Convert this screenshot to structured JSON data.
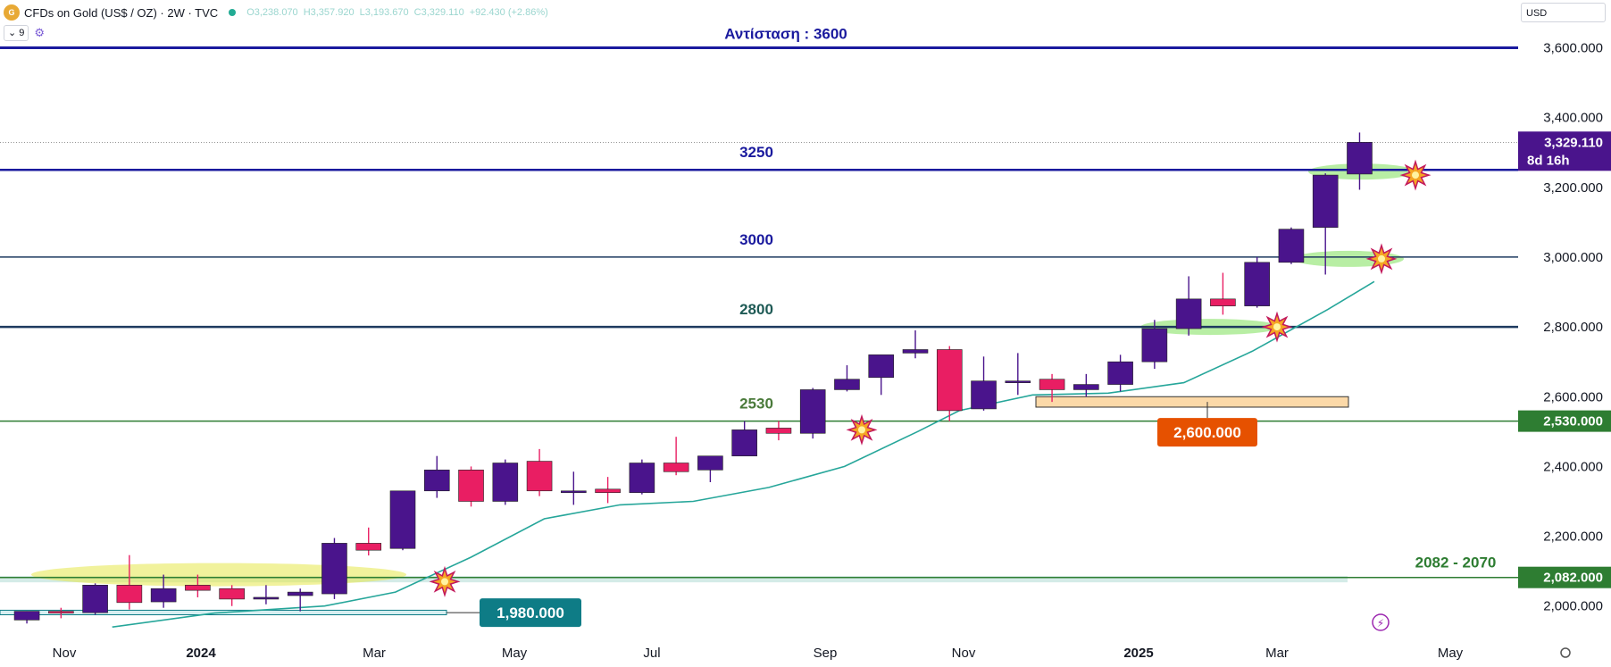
{
  "header": {
    "logo_text": "G",
    "title": "CFDs on Gold (US$ / OZ) · 2W · TVC",
    "open": "O3,238.070",
    "high": "H3,357.920",
    "low": "L3,193.670",
    "close": "C3,329.110",
    "change": "+92.430 (+2.86%)",
    "indicator_count": "9",
    "currency": "USD"
  },
  "chart_data": {
    "type": "candlestick",
    "ylim": [
      1920,
      3660
    ],
    "y_ticks": [
      "2,000.000",
      "2,200.000",
      "2,400.000",
      "2,600.000",
      "2,800.000",
      "3,000.000",
      "3,200.000",
      "3,400.000",
      "3,600.000"
    ],
    "x_ticks": [
      "Nov",
      "2024",
      "Mar",
      "May",
      "Jul",
      "Sep",
      "Nov",
      "2025",
      "Mar",
      "May"
    ],
    "colors": {
      "up": "#4a148c",
      "down": "#e91e63",
      "ema": "#26a69a",
      "resistance": "#1a1a9e",
      "level": "#1e3a5f",
      "support_green": "#2e7d32"
    },
    "candles": [
      {
        "date": "2023-10-16",
        "o": 1960,
        "h": 1985,
        "l": 1950,
        "c": 1985
      },
      {
        "date": "2023-10-30",
        "o": 1985,
        "h": 1995,
        "l": 1965,
        "c": 1980
      },
      {
        "date": "2023-11-13",
        "o": 1981,
        "h": 2065,
        "l": 1975,
        "c": 2060
      },
      {
        "date": "2023-11-27",
        "o": 2060,
        "h": 2146,
        "l": 1990,
        "c": 2010
      },
      {
        "date": "2023-12-11",
        "o": 2012,
        "h": 2090,
        "l": 1995,
        "c": 2050
      },
      {
        "date": "2023-12-25",
        "o": 2060,
        "h": 2090,
        "l": 2025,
        "c": 2045
      },
      {
        "date": "2024-01-08",
        "o": 2050,
        "h": 2060,
        "l": 2000,
        "c": 2020
      },
      {
        "date": "2024-01-22",
        "o": 2022,
        "h": 2060,
        "l": 2005,
        "c": 2025
      },
      {
        "date": "2024-02-05",
        "o": 2030,
        "h": 2050,
        "l": 1985,
        "c": 2040
      },
      {
        "date": "2024-02-19",
        "o": 2035,
        "h": 2195,
        "l": 2020,
        "c": 2180
      },
      {
        "date": "2024-03-04",
        "o": 2180,
        "h": 2225,
        "l": 2145,
        "c": 2160
      },
      {
        "date": "2024-03-18",
        "o": 2165,
        "h": 2330,
        "l": 2160,
        "c": 2330
      },
      {
        "date": "2024-04-01",
        "o": 2330,
        "h": 2430,
        "l": 2310,
        "c": 2390
      },
      {
        "date": "2024-04-15",
        "o": 2390,
        "h": 2400,
        "l": 2285,
        "c": 2300
      },
      {
        "date": "2024-04-29",
        "o": 2300,
        "h": 2420,
        "l": 2290,
        "c": 2410
      },
      {
        "date": "2024-05-13",
        "o": 2415,
        "h": 2450,
        "l": 2315,
        "c": 2330
      },
      {
        "date": "2024-05-27",
        "o": 2330,
        "h": 2385,
        "l": 2290,
        "c": 2330
      },
      {
        "date": "2024-06-10",
        "o": 2335,
        "h": 2370,
        "l": 2295,
        "c": 2325
      },
      {
        "date": "2024-06-24",
        "o": 2325,
        "h": 2420,
        "l": 2320,
        "c": 2410
      },
      {
        "date": "2024-07-08",
        "o": 2410,
        "h": 2485,
        "l": 2375,
        "c": 2385
      },
      {
        "date": "2024-07-22",
        "o": 2390,
        "h": 2430,
        "l": 2355,
        "c": 2430
      },
      {
        "date": "2024-08-05",
        "o": 2430,
        "h": 2530,
        "l": 2430,
        "c": 2505
      },
      {
        "date": "2024-08-19",
        "o": 2510,
        "h": 2530,
        "l": 2475,
        "c": 2495
      },
      {
        "date": "2024-09-02",
        "o": 2495,
        "h": 2625,
        "l": 2480,
        "c": 2620
      },
      {
        "date": "2024-09-16",
        "o": 2620,
        "h": 2690,
        "l": 2615,
        "c": 2650
      },
      {
        "date": "2024-09-30",
        "o": 2655,
        "h": 2720,
        "l": 2605,
        "c": 2720
      },
      {
        "date": "2024-10-14",
        "o": 2725,
        "h": 2790,
        "l": 2710,
        "c": 2735
      },
      {
        "date": "2024-10-28",
        "o": 2735,
        "h": 2745,
        "l": 2530,
        "c": 2560
      },
      {
        "date": "2024-11-11",
        "o": 2565,
        "h": 2715,
        "l": 2560,
        "c": 2645
      },
      {
        "date": "2024-11-25",
        "o": 2645,
        "h": 2725,
        "l": 2605,
        "c": 2645
      },
      {
        "date": "2024-12-09",
        "o": 2650,
        "h": 2665,
        "l": 2585,
        "c": 2620
      },
      {
        "date": "2024-12-23",
        "o": 2620,
        "h": 2665,
        "l": 2600,
        "c": 2635
      },
      {
        "date": "2025-01-06",
        "o": 2635,
        "h": 2720,
        "l": 2615,
        "c": 2700
      },
      {
        "date": "2025-01-20",
        "o": 2700,
        "h": 2820,
        "l": 2680,
        "c": 2795
      },
      {
        "date": "2025-02-03",
        "o": 2795,
        "h": 2945,
        "l": 2775,
        "c": 2880
      },
      {
        "date": "2025-02-17",
        "o": 2880,
        "h": 2955,
        "l": 2835,
        "c": 2860
      },
      {
        "date": "2025-03-03",
        "o": 2860,
        "h": 3000,
        "l": 2855,
        "c": 2985
      },
      {
        "date": "2025-03-17",
        "o": 2985,
        "h": 3085,
        "l": 2980,
        "c": 3080
      },
      {
        "date": "2025-03-31",
        "o": 3085,
        "h": 3240,
        "l": 2950,
        "c": 3235
      },
      {
        "date": "2025-04-14",
        "o": 3238,
        "h": 3357,
        "l": 3193,
        "c": 3329
      }
    ],
    "ema": [
      [
        "2023-11-20",
        1940
      ],
      [
        "2024-01-01",
        1980
      ],
      [
        "2024-02-15",
        2000
      ],
      [
        "2024-03-15",
        2040
      ],
      [
        "2024-04-15",
        2140
      ],
      [
        "2024-05-15",
        2250
      ],
      [
        "2024-06-15",
        2290
      ],
      [
        "2024-07-15",
        2300
      ],
      [
        "2024-08-15",
        2340
      ],
      [
        "2024-09-15",
        2400
      ],
      [
        "2024-10-15",
        2500
      ],
      [
        "2024-11-01",
        2560
      ],
      [
        "2024-12-01",
        2605
      ],
      [
        "2025-01-01",
        2610
      ],
      [
        "2025-02-01",
        2640
      ],
      [
        "2025-03-01",
        2730
      ],
      [
        "2025-04-01",
        2850
      ],
      [
        "2025-04-20",
        2930
      ]
    ],
    "levels": [
      {
        "price": 3600,
        "label": "Αντίσταση : 3600",
        "color": "#1a1a9e",
        "width": 3
      },
      {
        "price": 3250,
        "label": "3250",
        "color": "#1a1a9e",
        "width": 2.5
      },
      {
        "price": 3000,
        "label": "3000",
        "color": "#1e3a5f",
        "width": 1.5
      },
      {
        "price": 2800,
        "label": "2800",
        "color": "#1e3a5f",
        "width": 2.5
      },
      {
        "price": 2530,
        "label": "2530",
        "color": "#2e7d32",
        "width": 1.5
      },
      {
        "price": 2082,
        "label": "2082 - 2070",
        "color": "#2e7d32",
        "width": 1.5
      }
    ],
    "price_tags": [
      {
        "label": "3,329.110",
        "sub": "8d 16h",
        "price": 3329.11,
        "color": "#4a148c"
      },
      {
        "label": "2,530.000",
        "price": 2530,
        "color": "#2e7d32"
      },
      {
        "label": "2,082.000",
        "price": 2082,
        "color": "#2e7d32"
      }
    ],
    "callouts": [
      {
        "label": "2,600.000",
        "color": "#e65100"
      },
      {
        "label": "1,980.000",
        "color": "#0e7c86"
      }
    ]
  }
}
